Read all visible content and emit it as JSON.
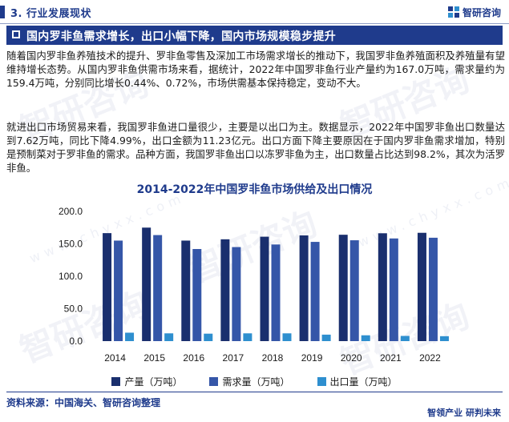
{
  "header": {
    "section_title": "3. 行业发展现状",
    "brand": "智研咨询"
  },
  "banner": {
    "title": "国内罗非鱼需求增长，出口小幅下降，国内市场规模稳步提升"
  },
  "paragraphs": [
    "随着国内罗非鱼养殖技术的提升、罗非鱼零售及深加工市场需求增长的推动下，我国罗非鱼养殖面积及养殖量有望维持增长态势。从国内罗非鱼供需市场来看，据统计，2022年中国罗非鱼行业产量约为167.0万吨，需求量约为159.4万吨，分别同比增长0.44%、0.72%，市场供需基本保持稳定，变动不大。",
    "就进出口市场贸易来看，我国罗非鱼进口量很少，主要是以出口为主。数据显示，2022年中国罗非鱼出口数量达到7.62万吨，同比下降4.99%，出口金额为11.23亿元。出口方面下降主要原因在于国内罗非鱼需求增加，特别是预制菜对于罗非鱼的需求。品种方面，我国罗非鱼出口以冻罗非鱼为主，出口数量占比达到98.2%，其次为活罗非鱼。"
  ],
  "watermark": {
    "text": "智研咨询",
    "sub": "www.chyxx.com"
  },
  "chart_data": {
    "type": "bar",
    "title": "2014-2022年中国罗非鱼市场供给及出口情况",
    "categories": [
      "2014",
      "2015",
      "2016",
      "2017",
      "2018",
      "2019",
      "2020",
      "2021",
      "2022"
    ],
    "series": [
      {
        "name": "产量（万吨）",
        "color": "#1a2f6e",
        "values": [
          166.5,
          175.0,
          155.0,
          157.0,
          161.0,
          163.0,
          164.0,
          166.3,
          167.0
        ]
      },
      {
        "name": "需求量（万吨）",
        "color": "#3556a8",
        "values": [
          155.0,
          163.5,
          142.0,
          145.0,
          149.0,
          153.0,
          155.5,
          158.3,
          159.4
        ]
      },
      {
        "name": "出口量（万吨）",
        "color": "#2e8fcf",
        "values": [
          13.0,
          12.0,
          11.5,
          12.0,
          12.0,
          10.0,
          9.0,
          8.02,
          7.62
        ]
      }
    ],
    "yticks": [
      "0.0",
      "50.0",
      "100.0",
      "150.0",
      "200.0"
    ],
    "ylim": [
      0,
      200
    ],
    "xlabel": "",
    "ylabel": "",
    "grid": false,
    "legend_position": "bottom"
  },
  "footer": {
    "source": "资料来源：中国海关、智研咨询整理",
    "tagline": "智领产业 研判未来"
  }
}
